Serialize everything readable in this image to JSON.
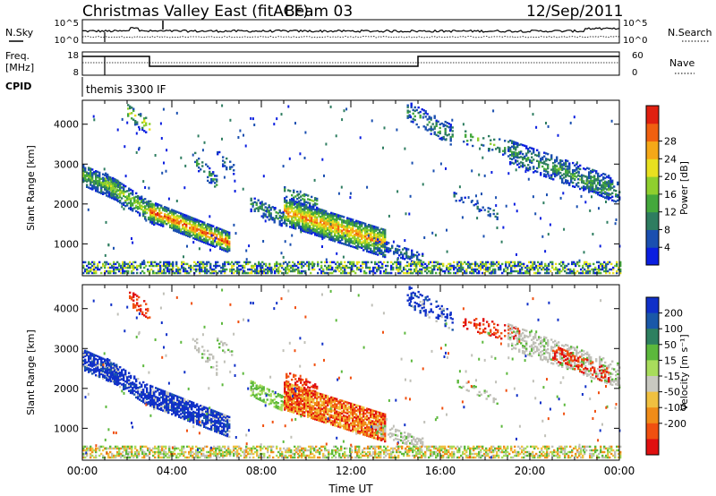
{
  "header": {
    "title": "Christmas Valley East (fitACF)",
    "beam": "Beam 03",
    "date": "12/Sep/2011"
  },
  "panels": {
    "noise": {
      "left_label": "N.Sky",
      "right_label": "N.Search",
      "left_ticks": [
        "10^5",
        "10^0"
      ],
      "right_ticks": [
        "10^5",
        "10^0"
      ]
    },
    "freq": {
      "left_label_1": "Freq.",
      "left_label_2": "[MHz]",
      "right_label": "Nave",
      "left_ticks": [
        "18",
        "8"
      ],
      "right_ticks": [
        "60",
        "0"
      ]
    },
    "cpid": {
      "label": "CPID",
      "text": "themis 3300 IF"
    }
  },
  "chart_data": [
    {
      "type": "heatmap",
      "name": "power",
      "ylabel": "Slant Range [km]",
      "xlabel": "",
      "xlim_hours": [
        0,
        24
      ],
      "ylim": [
        200,
        4600
      ],
      "yticks": [
        "1000",
        "2000",
        "3000",
        "4000"
      ],
      "colorbar": {
        "label": "Power [dB]",
        "ticks": [
          "4",
          "8",
          "12",
          "16",
          "20",
          "24",
          "28"
        ],
        "colors": [
          "#0a1ee0",
          "#1a4fb0",
          "#2e7d60",
          "#44a83c",
          "#8fcf2e",
          "#e8e020",
          "#f5a818",
          "#f06010",
          "#e02010"
        ]
      }
    },
    {
      "type": "heatmap",
      "name": "velocity",
      "ylabel": "Slant Range [km]",
      "xlabel": "Time UT",
      "xticks": [
        "00:00",
        "04:00",
        "08:00",
        "12:00",
        "16:00",
        "20:00",
        "00:00"
      ],
      "xlim_hours": [
        0,
        24
      ],
      "ylim": [
        200,
        4600
      ],
      "yticks": [
        "1000",
        "2000",
        "3000",
        "4000"
      ],
      "colorbar": {
        "label": "Velocity [m s⁻¹]",
        "ticks": [
          "200",
          "100",
          "50",
          "15",
          "-15",
          "-50",
          "-100",
          "-200"
        ],
        "colors": [
          "#1030c8",
          "#1a58a8",
          "#2e8060",
          "#5cb83c",
          "#a8dc5c",
          "#c8c8c0",
          "#f0c040",
          "#f08c18",
          "#f05010",
          "#e01010"
        ]
      }
    }
  ],
  "colors": {
    "ground_scatter": "#c0c0b8",
    "axis": "#000000"
  }
}
